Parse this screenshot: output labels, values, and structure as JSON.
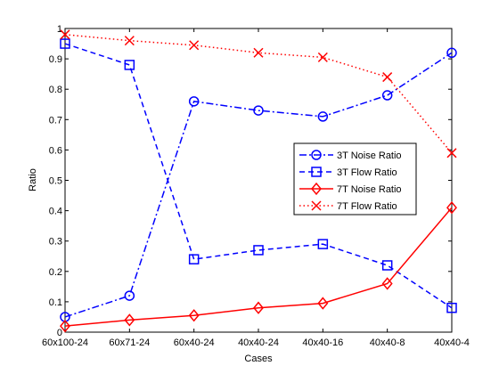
{
  "chart_data": {
    "type": "line",
    "title": "",
    "xlabel": "Cases",
    "ylabel": "Ratio",
    "categories": [
      "60x100-24",
      "60x71-24",
      "60x40-24",
      "40x40-24",
      "40x40-16",
      "40x40-8",
      "40x40-4"
    ],
    "yticks": [
      "0",
      "0.1",
      "0.2",
      "0.3",
      "0.4",
      "0.5",
      "0.6",
      "0.7",
      "0.8",
      "0.9",
      "1"
    ],
    "ylim": [
      0,
      1
    ],
    "grid": false,
    "legend_position": "right",
    "series": [
      {
        "name": "3T Noise Ratio",
        "values": [
          0.05,
          0.12,
          0.76,
          0.73,
          0.71,
          0.78,
          0.92
        ],
        "color": "#0000ff",
        "linestyle": "dashdot",
        "marker": "circle"
      },
      {
        "name": "3T Flow Ratio",
        "values": [
          0.95,
          0.88,
          0.24,
          0.27,
          0.29,
          0.22,
          0.08
        ],
        "color": "#0000ff",
        "linestyle": "dashed",
        "marker": "square"
      },
      {
        "name": "7T Noise Ratio",
        "values": [
          0.02,
          0.04,
          0.055,
          0.08,
          0.095,
          0.16,
          0.41
        ],
        "color": "#ff0000",
        "linestyle": "solid",
        "marker": "diamond"
      },
      {
        "name": "7T Flow Ratio",
        "values": [
          0.98,
          0.96,
          0.945,
          0.92,
          0.905,
          0.84,
          0.59
        ],
        "color": "#ff0000",
        "linestyle": "dotted",
        "marker": "x"
      }
    ]
  }
}
